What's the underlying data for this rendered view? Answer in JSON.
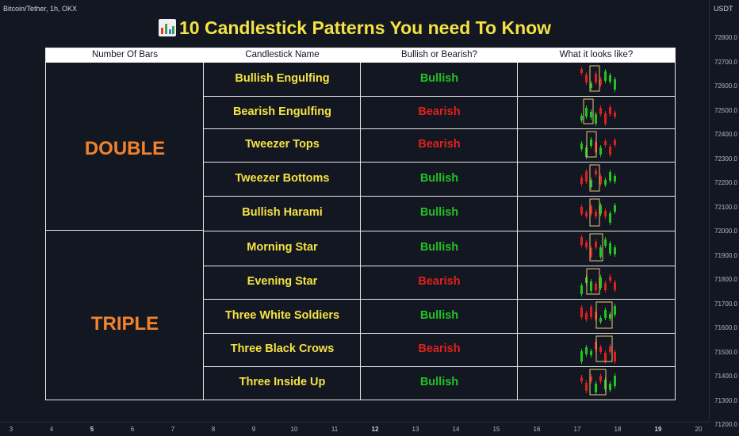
{
  "symbol": "Bitcoin/Tether, 1h, OKX",
  "price_axis": {
    "unit": "USDT",
    "ticks": [
      "72800.0",
      "72700.0",
      "72600.0",
      "72500.0",
      "72400.0",
      "72300.0",
      "72200.0",
      "72100.0",
      "72000.0",
      "71900.0",
      "71800.0",
      "71700.0",
      "71600.0",
      "71500.0",
      "71400.0",
      "71300.0",
      "71200.0"
    ]
  },
  "time_axis": {
    "labels": [
      {
        "text": "3",
        "bold": false
      },
      {
        "text": "4",
        "bold": false
      },
      {
        "text": "5",
        "bold": true
      },
      {
        "text": "6",
        "bold": false
      },
      {
        "text": "7",
        "bold": false
      },
      {
        "text": "8",
        "bold": false
      },
      {
        "text": "9",
        "bold": false
      },
      {
        "text": "10",
        "bold": false
      },
      {
        "text": "11",
        "bold": false
      },
      {
        "text": "12",
        "bold": true
      },
      {
        "text": "13",
        "bold": false
      },
      {
        "text": "14",
        "bold": false
      },
      {
        "text": "15",
        "bold": false
      },
      {
        "text": "16",
        "bold": false
      },
      {
        "text": "17",
        "bold": false
      },
      {
        "text": "18",
        "bold": false
      },
      {
        "text": "19",
        "bold": true
      },
      {
        "text": "20",
        "bold": false
      }
    ]
  },
  "title": "10 Candlestick Patterns You need To Know",
  "headers": [
    "Number Of Bars",
    "Candlestick Name",
    "Bullish or Bearish?",
    "What it looks like?"
  ],
  "groups": [
    {
      "label": "DOUBLE"
    },
    {
      "label": "TRIPLE"
    }
  ],
  "rows": [
    {
      "name": "Bullish Engulfing",
      "signal": "Bullish",
      "type": "bull"
    },
    {
      "name": "Bearish Engulfing",
      "signal": "Bearish",
      "type": "bear"
    },
    {
      "name": "Tweezer Tops",
      "signal": "Bearish",
      "type": "bear"
    },
    {
      "name": "Tweezer Bottoms",
      "signal": "Bullish",
      "type": "bull"
    },
    {
      "name": "Bullish Harami",
      "signal": "Bullish",
      "type": "bull"
    },
    {
      "name": "Morning Star",
      "signal": "Bullish",
      "type": "bull"
    },
    {
      "name": "Evening Star",
      "signal": "Bearish",
      "type": "bear"
    },
    {
      "name": "Three White Soldiers",
      "signal": "Bullish",
      "type": "bull"
    },
    {
      "name": "Three Black Crows",
      "signal": "Bearish",
      "type": "bear"
    },
    {
      "name": "Three Inside Up",
      "signal": "Bullish",
      "type": "bull"
    }
  ],
  "colors": {
    "bull": "#22c322",
    "bear": "#e0201f",
    "name": "#f5e342",
    "group": "#f2822c",
    "highlight_box": "#e8c77a"
  }
}
